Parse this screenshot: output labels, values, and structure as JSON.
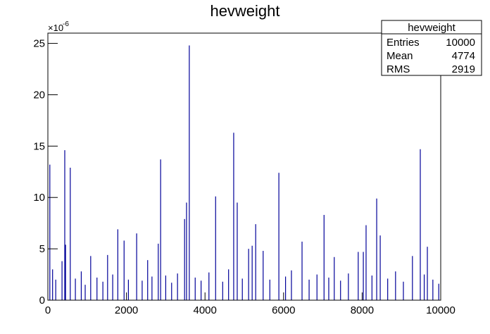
{
  "chart_data": {
    "type": "bar",
    "title": "hevweight",
    "y_scale_base": "×10",
    "y_scale_exponent": "-6",
    "color": "#000099",
    "xlim": [
      0,
      10000
    ],
    "ylim": [
      0,
      26
    ],
    "xticks": [
      0,
      2000,
      4000,
      6000,
      8000,
      10000
    ],
    "yticks": [
      0,
      5,
      10,
      15,
      20,
      25
    ],
    "x": [
      50,
      120,
      200,
      360,
      430,
      450,
      570,
      700,
      850,
      950,
      1090,
      1250,
      1400,
      1520,
      1650,
      1780,
      1940,
      2050,
      2260,
      2400,
      2540,
      2650,
      2810,
      2870,
      3000,
      3150,
      3300,
      3480,
      3530,
      3600,
      3750,
      3900,
      4100,
      4270,
      4450,
      4600,
      4730,
      4820,
      4950,
      5110,
      5200,
      5290,
      5480,
      5650,
      5880,
      6050,
      6200,
      6470,
      6650,
      6850,
      7030,
      7150,
      7290,
      7450,
      7650,
      7900,
      8030,
      8100,
      8250,
      8370,
      8460,
      8650,
      8850,
      9050,
      9280,
      9480,
      9580,
      9660,
      9800,
      9950
    ],
    "values": [
      13.2,
      3.0,
      2.0,
      3.8,
      14.6,
      5.4,
      12.9,
      2.1,
      2.8,
      1.5,
      4.3,
      2.2,
      1.8,
      4.4,
      2.5,
      6.9,
      5.8,
      2.0,
      6.5,
      1.9,
      3.9,
      2.3,
      5.5,
      13.7,
      2.4,
      1.7,
      2.6,
      7.9,
      9.5,
      24.8,
      2.2,
      1.9,
      2.7,
      10.1,
      1.8,
      3.0,
      16.3,
      9.5,
      2.1,
      5.0,
      5.3,
      7.4,
      4.8,
      2.0,
      12.4,
      2.3,
      2.9,
      5.7,
      2.0,
      2.5,
      8.3,
      2.2,
      4.2,
      1.9,
      2.6,
      4.7,
      4.7,
      7.3,
      2.4,
      9.9,
      6.3,
      2.1,
      2.8,
      1.8,
      4.3,
      14.7,
      2.5,
      5.2,
      2.0,
      1.6
    ],
    "stats_box": {
      "title": "hevweight",
      "rows": [
        {
          "label": "Entries",
          "value": 10000
        },
        {
          "label": "Mean",
          "value": 4774
        },
        {
          "label": "RMS",
          "value": 2919
        }
      ]
    }
  }
}
